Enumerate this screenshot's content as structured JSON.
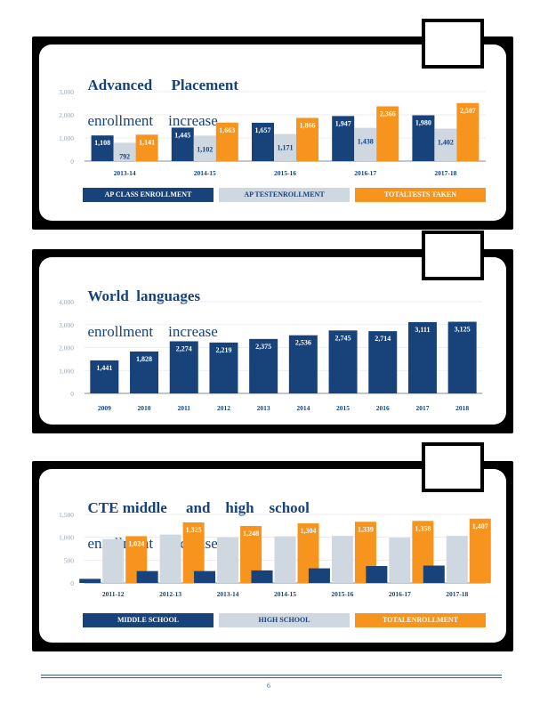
{
  "colors": {
    "navy": "#17427a",
    "silver": "#cfd7e0",
    "orange": "#f6941d"
  },
  "chart_data": [
    {
      "type": "bar",
      "title_bold": "Advanced     Placement",
      "title_rest": "enrollment    increase",
      "categories": [
        "2013-14",
        "2014-15",
        "2015-16",
        "2016-17",
        "2017-18"
      ],
      "ylim": [
        0,
        3000
      ],
      "yticks": [
        "0",
        "1,000",
        "2,000",
        "3,000"
      ],
      "series": [
        {
          "name": "AP CLASS ENROLLMENT",
          "color": "#17427a",
          "values": [
            1108,
            1445,
            1657,
            1947,
            1980
          ],
          "labels": [
            "1,108",
            "1,445",
            "1,657",
            "1,947",
            "1,980"
          ]
        },
        {
          "name": "AP TESTENROLLMENT",
          "color": "#cfd7e0",
          "values": [
            792,
            1102,
            1171,
            1438,
            1402
          ],
          "labels": [
            "792",
            "1,102",
            "1,171",
            "1,438",
            "1,402"
          ]
        },
        {
          "name": "TOTALTESTS TAKEN",
          "color": "#f6941d",
          "values": [
            1141,
            1663,
            1866,
            2366,
            2507
          ],
          "labels": [
            "1,141",
            "1,663",
            "1,866",
            "2,366",
            "2,507"
          ]
        }
      ]
    },
    {
      "type": "bar",
      "title_bold": "World  languages",
      "title_rest": "enrollment    increase",
      "categories": [
        "2009",
        "2010",
        "2011",
        "2012",
        "2013",
        "2014",
        "2015",
        "2016",
        "2017",
        "2018"
      ],
      "ylim": [
        0,
        4000
      ],
      "yticks": [
        "0",
        "1,000",
        "2,000",
        "3,000",
        "4,000"
      ],
      "series": [
        {
          "name": "",
          "color": "#17427a",
          "values": [
            1441,
            1828,
            2274,
            2219,
            2375,
            2536,
            2745,
            2714,
            3111,
            3125
          ],
          "labels": [
            "1,441",
            "1,828",
            "2,274",
            "2,219",
            "2,375",
            "2,536",
            "2,745",
            "2,714",
            "3,111",
            "3,125"
          ]
        }
      ]
    },
    {
      "type": "bar",
      "title_bold": "CTE middle     and    high    school",
      "title_rest": "enrollment    increase",
      "categories": [
        "2011-12",
        "2012-13",
        "2013-14",
        "2014-15",
        "2015-16",
        "2016-17",
        "2017-18"
      ],
      "ylim": [
        0,
        1500
      ],
      "yticks": [
        "0",
        "500",
        "1,000",
        "1,500"
      ],
      "series": [
        {
          "name": "MIDDLE SCHOOL",
          "color": "#17427a",
          "values": [
            90,
            260,
            260,
            275,
            320,
            370,
            380
          ],
          "labels": []
        },
        {
          "name": "HIGH SCHOOL",
          "color": "#cfd7e0",
          "values": [
            960,
            1060,
            1000,
            1020,
            1030,
            990,
            1030
          ],
          "labels": []
        },
        {
          "name": "TOTALENROLLMENT",
          "color": "#f6941d",
          "values": [
            1024,
            1325,
            1248,
            1304,
            1339,
            1358,
            1407
          ],
          "labels": [
            "1,024",
            "1,325",
            "1,248",
            "1,304",
            "1,339",
            "1,358",
            "1,407"
          ]
        }
      ]
    }
  ],
  "footer": {
    "page_number": "6"
  }
}
